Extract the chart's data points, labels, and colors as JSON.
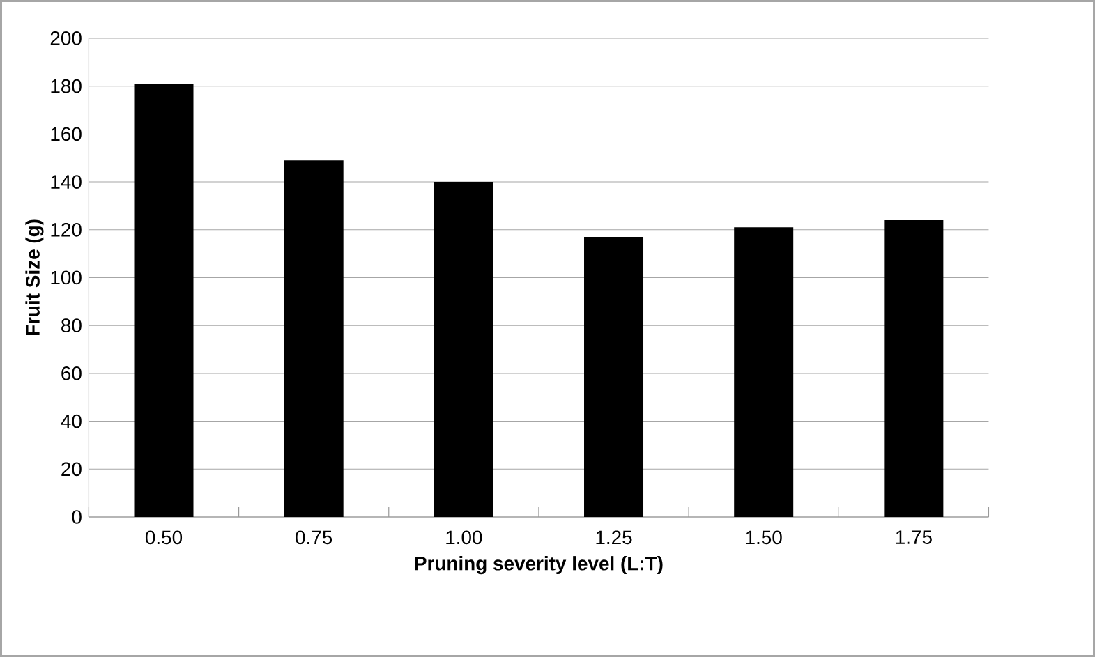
{
  "chart_data": {
    "type": "bar",
    "xlabel": "Pruning severity level (L:T)",
    "ylabel": "Fruit Size (g)",
    "categories": [
      "0.50",
      "0.75",
      "1.00",
      "1.25",
      "1.50",
      "1.75"
    ],
    "values": [
      181,
      149,
      140,
      117,
      121,
      124
    ],
    "color": "#000000",
    "ylim": [
      0,
      200
    ],
    "yticks": [
      0,
      20,
      40,
      60,
      80,
      100,
      120,
      140,
      160,
      180,
      200
    ],
    "grid": "y"
  }
}
